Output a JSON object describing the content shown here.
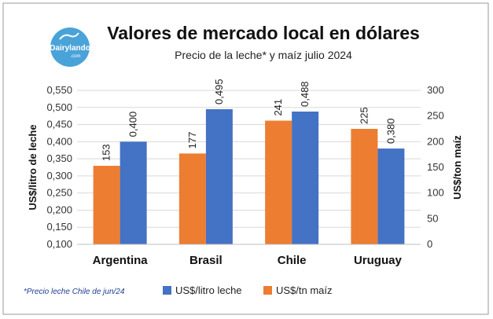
{
  "brand": {
    "logo_text": "Dairylando",
    "logo_sub": ".com"
  },
  "footnote": "*Precio leche Chile de jun/24",
  "colors": {
    "milk": "#4472C4",
    "corn": "#ED7D31",
    "grid": "#d9d9d9",
    "border": "#9a9a9a"
  },
  "chart_data": {
    "type": "bar",
    "title": "Valores de mercado local en dólares",
    "subtitle": "Precio de la leche* y maíz julio 2024",
    "categories": [
      "Argentina",
      "Brasil",
      "Chile",
      "Uruguay"
    ],
    "series": [
      {
        "name": "US$/tn maíz",
        "axis": "right",
        "color": "#ED7D31",
        "values": [
          153,
          177,
          241,
          225
        ],
        "labels": [
          "153",
          "177",
          "241",
          "225"
        ]
      },
      {
        "name": "US$/litro leche",
        "axis": "left",
        "color": "#4472C4",
        "values": [
          0.4,
          0.495,
          0.488,
          0.38
        ],
        "labels": [
          "0,400",
          "0,495",
          "0,488",
          "0,380"
        ]
      }
    ],
    "ylabel": "US$/litro de leche",
    "y2label": "US$/ton maíz",
    "ylim": [
      0.1,
      0.55
    ],
    "y2lim": [
      0,
      300
    ],
    "yticks": [
      "0,100",
      "0,150",
      "0,200",
      "0,250",
      "0,300",
      "0,350",
      "0,400",
      "0,450",
      "0,500",
      "0,550"
    ],
    "y2ticks": [
      "0",
      "50",
      "100",
      "150",
      "200",
      "250",
      "300"
    ],
    "legend": {
      "position": "bottom",
      "order": [
        "US$/litro leche",
        "US$/tn maíz"
      ]
    },
    "grid": true
  }
}
